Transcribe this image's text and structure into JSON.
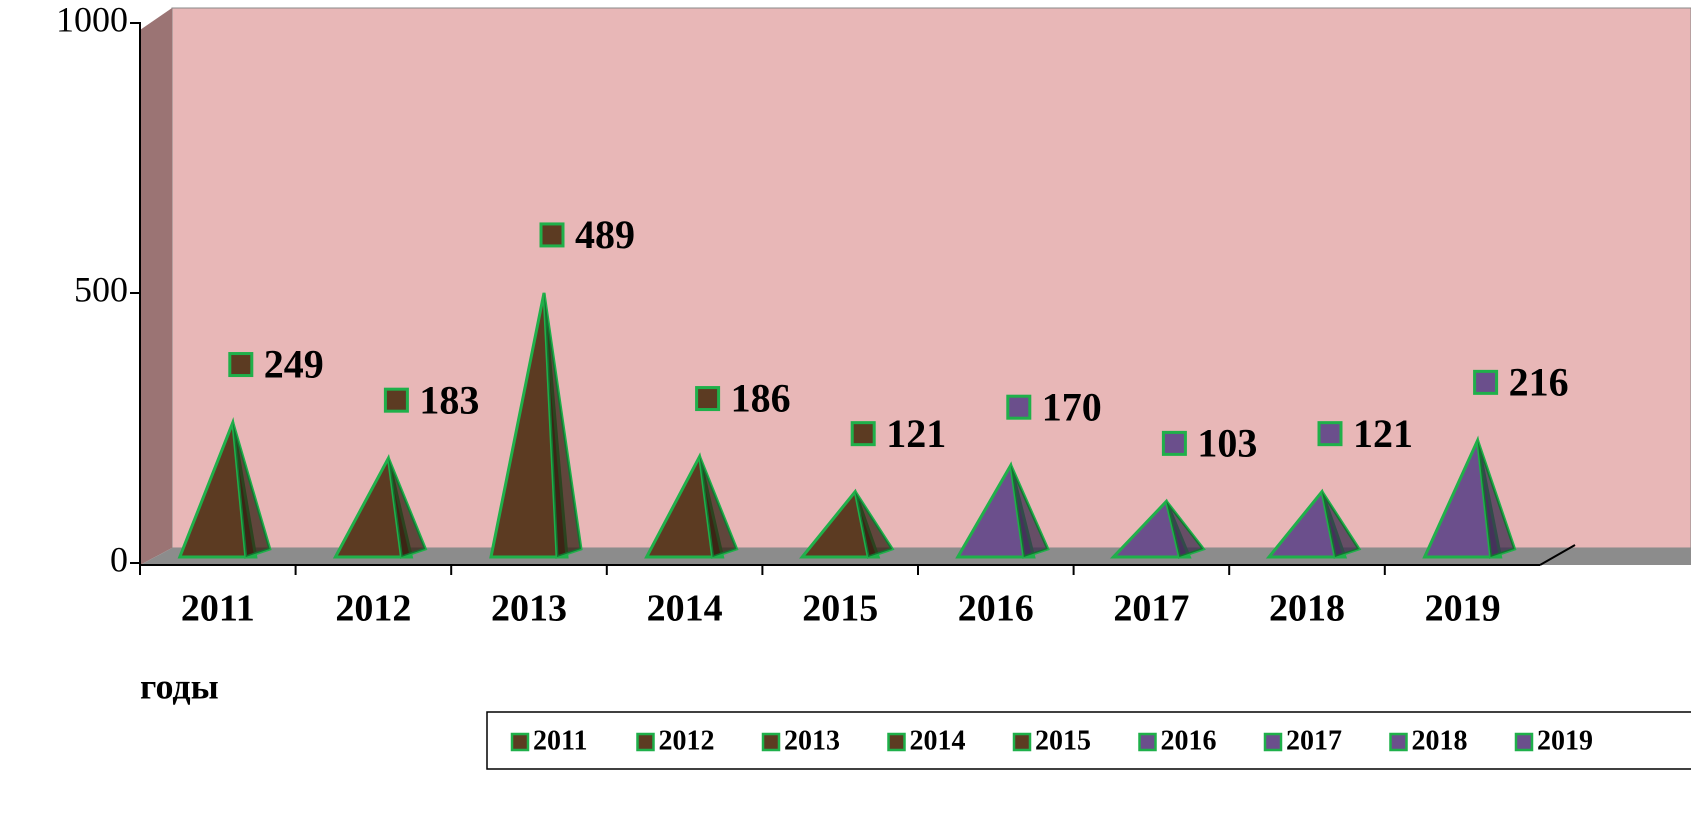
{
  "chart_data": {
    "type": "pyramid",
    "x_label": "годы",
    "categories": [
      "2011",
      "2012",
      "2013",
      "2014",
      "2015",
      "2016",
      "2017",
      "2018",
      "2019"
    ],
    "values": [
      249,
      183,
      489,
      186,
      121,
      170,
      103,
      121,
      216
    ],
    "colors": [
      "#5c3b22",
      "#5c3b22",
      "#5c3b22",
      "#5c3b22",
      "#5c3b22",
      "#6b4f8c",
      "#6b4f8c",
      "#6b4f8c",
      "#6b4f8c"
    ],
    "edge_color": "#1fb04a",
    "ylim": [
      0,
      1000
    ],
    "yticks": [
      0,
      500,
      1000
    ],
    "legend": "bottom-right"
  }
}
